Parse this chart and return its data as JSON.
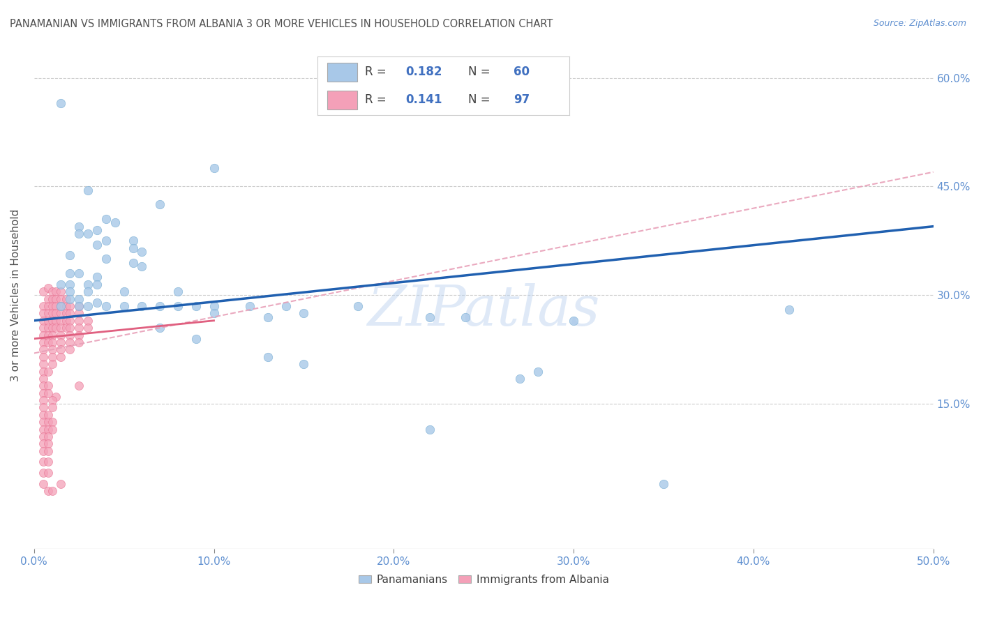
{
  "title": "PANAMANIAN VS IMMIGRANTS FROM ALBANIA 3 OR MORE VEHICLES IN HOUSEHOLD CORRELATION CHART",
  "source": "Source: ZipAtlas.com",
  "ylabel": "3 or more Vehicles in Household",
  "xlabel_ticks": [
    "0.0%",
    "10.0%",
    "20.0%",
    "30.0%",
    "40.0%",
    "50.0%"
  ],
  "ylabel_ticks": [
    "15.0%",
    "30.0%",
    "45.0%",
    "60.0%"
  ],
  "xlim": [
    0.0,
    0.5
  ],
  "ylim": [
    -0.05,
    0.65
  ],
  "watermark": "ZIPatlas",
  "blue_color": "#a8c8e8",
  "pink_color": "#f4a0b8",
  "blue_scatter_edge": "#7aafd4",
  "pink_scatter_edge": "#e87090",
  "blue_line_color": "#2060b0",
  "pink_line_color": "#e06080",
  "pink_dashed_color": "#e8a0b8",
  "background_color": "#ffffff",
  "grid_color": "#cccccc",
  "title_color": "#505050",
  "tick_color": "#6090d0",
  "blue_scatter": [
    [
      0.015,
      0.565
    ],
    [
      0.1,
      0.475
    ],
    [
      0.03,
      0.445
    ],
    [
      0.07,
      0.425
    ],
    [
      0.04,
      0.405
    ],
    [
      0.045,
      0.4
    ],
    [
      0.025,
      0.395
    ],
    [
      0.035,
      0.39
    ],
    [
      0.025,
      0.385
    ],
    [
      0.03,
      0.385
    ],
    [
      0.04,
      0.375
    ],
    [
      0.055,
      0.375
    ],
    [
      0.035,
      0.37
    ],
    [
      0.055,
      0.365
    ],
    [
      0.06,
      0.36
    ],
    [
      0.02,
      0.355
    ],
    [
      0.04,
      0.35
    ],
    [
      0.055,
      0.345
    ],
    [
      0.06,
      0.34
    ],
    [
      0.02,
      0.33
    ],
    [
      0.025,
      0.33
    ],
    [
      0.035,
      0.325
    ],
    [
      0.015,
      0.315
    ],
    [
      0.02,
      0.315
    ],
    [
      0.03,
      0.315
    ],
    [
      0.035,
      0.315
    ],
    [
      0.02,
      0.305
    ],
    [
      0.03,
      0.305
    ],
    [
      0.05,
      0.305
    ],
    [
      0.08,
      0.305
    ],
    [
      0.02,
      0.295
    ],
    [
      0.025,
      0.295
    ],
    [
      0.035,
      0.29
    ],
    [
      0.015,
      0.285
    ],
    [
      0.025,
      0.285
    ],
    [
      0.03,
      0.285
    ],
    [
      0.04,
      0.285
    ],
    [
      0.05,
      0.285
    ],
    [
      0.06,
      0.285
    ],
    [
      0.07,
      0.285
    ],
    [
      0.08,
      0.285
    ],
    [
      0.09,
      0.285
    ],
    [
      0.1,
      0.285
    ],
    [
      0.12,
      0.285
    ],
    [
      0.14,
      0.285
    ],
    [
      0.18,
      0.285
    ],
    [
      0.1,
      0.275
    ],
    [
      0.15,
      0.275
    ],
    [
      0.13,
      0.27
    ],
    [
      0.22,
      0.27
    ],
    [
      0.24,
      0.27
    ],
    [
      0.3,
      0.265
    ],
    [
      0.07,
      0.255
    ],
    [
      0.09,
      0.24
    ],
    [
      0.13,
      0.215
    ],
    [
      0.15,
      0.205
    ],
    [
      0.28,
      0.195
    ],
    [
      0.27,
      0.185
    ],
    [
      0.42,
      0.28
    ],
    [
      0.22,
      0.115
    ],
    [
      0.35,
      0.04
    ]
  ],
  "pink_scatter": [
    [
      0.005,
      0.305
    ],
    [
      0.008,
      0.31
    ],
    [
      0.01,
      0.305
    ],
    [
      0.012,
      0.305
    ],
    [
      0.015,
      0.305
    ],
    [
      0.008,
      0.295
    ],
    [
      0.01,
      0.295
    ],
    [
      0.012,
      0.295
    ],
    [
      0.015,
      0.295
    ],
    [
      0.018,
      0.295
    ],
    [
      0.005,
      0.285
    ],
    [
      0.008,
      0.285
    ],
    [
      0.01,
      0.285
    ],
    [
      0.012,
      0.285
    ],
    [
      0.015,
      0.285
    ],
    [
      0.018,
      0.285
    ],
    [
      0.02,
      0.285
    ],
    [
      0.025,
      0.285
    ],
    [
      0.005,
      0.275
    ],
    [
      0.008,
      0.275
    ],
    [
      0.01,
      0.275
    ],
    [
      0.012,
      0.275
    ],
    [
      0.015,
      0.275
    ],
    [
      0.018,
      0.275
    ],
    [
      0.02,
      0.275
    ],
    [
      0.025,
      0.275
    ],
    [
      0.005,
      0.265
    ],
    [
      0.008,
      0.265
    ],
    [
      0.01,
      0.265
    ],
    [
      0.012,
      0.265
    ],
    [
      0.015,
      0.265
    ],
    [
      0.018,
      0.265
    ],
    [
      0.02,
      0.265
    ],
    [
      0.025,
      0.265
    ],
    [
      0.03,
      0.265
    ],
    [
      0.005,
      0.255
    ],
    [
      0.008,
      0.255
    ],
    [
      0.01,
      0.255
    ],
    [
      0.012,
      0.255
    ],
    [
      0.015,
      0.255
    ],
    [
      0.018,
      0.255
    ],
    [
      0.02,
      0.255
    ],
    [
      0.025,
      0.255
    ],
    [
      0.03,
      0.255
    ],
    [
      0.005,
      0.245
    ],
    [
      0.008,
      0.245
    ],
    [
      0.01,
      0.245
    ],
    [
      0.015,
      0.245
    ],
    [
      0.02,
      0.245
    ],
    [
      0.025,
      0.245
    ],
    [
      0.005,
      0.235
    ],
    [
      0.008,
      0.235
    ],
    [
      0.01,
      0.235
    ],
    [
      0.015,
      0.235
    ],
    [
      0.02,
      0.235
    ],
    [
      0.025,
      0.235
    ],
    [
      0.005,
      0.225
    ],
    [
      0.01,
      0.225
    ],
    [
      0.015,
      0.225
    ],
    [
      0.02,
      0.225
    ],
    [
      0.005,
      0.215
    ],
    [
      0.01,
      0.215
    ],
    [
      0.015,
      0.215
    ],
    [
      0.005,
      0.205
    ],
    [
      0.01,
      0.205
    ],
    [
      0.005,
      0.195
    ],
    [
      0.008,
      0.195
    ],
    [
      0.005,
      0.185
    ],
    [
      0.005,
      0.175
    ],
    [
      0.008,
      0.175
    ],
    [
      0.005,
      0.165
    ],
    [
      0.008,
      0.165
    ],
    [
      0.012,
      0.16
    ],
    [
      0.005,
      0.155
    ],
    [
      0.01,
      0.155
    ],
    [
      0.005,
      0.145
    ],
    [
      0.01,
      0.145
    ],
    [
      0.005,
      0.135
    ],
    [
      0.008,
      0.135
    ],
    [
      0.005,
      0.125
    ],
    [
      0.008,
      0.125
    ],
    [
      0.01,
      0.125
    ],
    [
      0.005,
      0.115
    ],
    [
      0.008,
      0.115
    ],
    [
      0.01,
      0.115
    ],
    [
      0.005,
      0.105
    ],
    [
      0.008,
      0.105
    ],
    [
      0.005,
      0.095
    ],
    [
      0.008,
      0.095
    ],
    [
      0.005,
      0.085
    ],
    [
      0.008,
      0.085
    ],
    [
      0.005,
      0.07
    ],
    [
      0.008,
      0.07
    ],
    [
      0.005,
      0.055
    ],
    [
      0.008,
      0.055
    ],
    [
      0.005,
      0.04
    ],
    [
      0.015,
      0.04
    ],
    [
      0.008,
      0.03
    ],
    [
      0.01,
      0.03
    ],
    [
      0.025,
      0.175
    ]
  ],
  "blue_line": {
    "x0": 0.0,
    "y0": 0.265,
    "x1": 0.5,
    "y1": 0.395
  },
  "pink_solid_line": {
    "x0": 0.0,
    "y0": 0.24,
    "x1": 0.1,
    "y1": 0.265
  },
  "pink_dashed_line": {
    "x0": 0.0,
    "y0": 0.22,
    "x1": 0.5,
    "y1": 0.47
  }
}
